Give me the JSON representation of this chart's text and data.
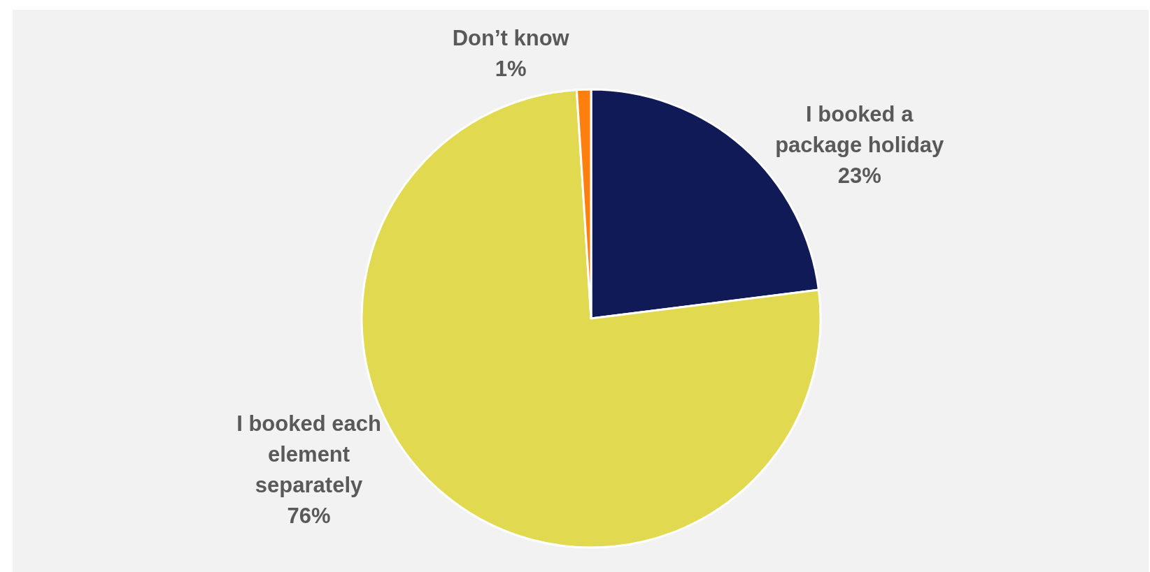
{
  "chart_data": {
    "type": "pie",
    "categories": [
      "I booked a package holiday",
      "I booked each element separately",
      "Don’t know"
    ],
    "values": [
      23,
      76,
      1
    ],
    "colors": [
      "#101a57",
      "#e1da50",
      "#ff7f0e"
    ],
    "value_labels": [
      "23%",
      "76%",
      "1%"
    ]
  }
}
